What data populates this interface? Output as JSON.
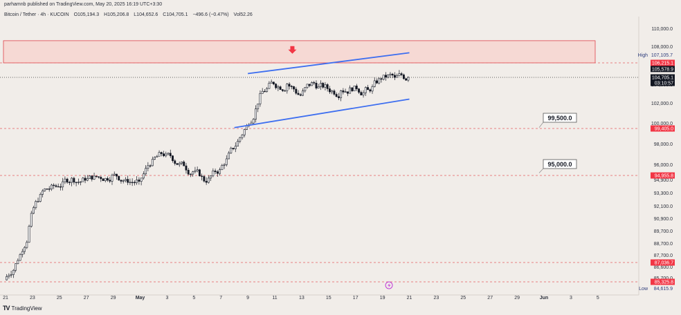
{
  "header": {
    "published_by": "parhamnb published on TradingView.com, May 20, 2025 16:19 UTC+3:30",
    "symbol": "Bitcoin / Tether · 4h · KUCOIN",
    "ohlc": {
      "open": "O105,194.3",
      "high": "H105,206.8",
      "low": "L104,652.6",
      "close": "C104,705.1",
      "change": "−496.6 (−0.47%)",
      "volume": "Vol52.26"
    }
  },
  "footer": {
    "brand": "TradingView",
    "logo": "tradingview-logo-icon"
  },
  "colors": {
    "background": "#f1ede9",
    "up_candle": "#ffffff",
    "down_candle": "#131722",
    "channel": "#3d6ef0",
    "zone_fill": "#f6d9d4",
    "zone_border": "#e0414a",
    "dashed_level": "#e25a5f",
    "red_badge": "#f23645",
    "dark_badge": "#131722",
    "gray_text": "#2a2e39",
    "arrow": "#f23645"
  },
  "chart_data": {
    "type": "candlestick",
    "symbol": "Bitcoin / Tether",
    "interval": "4h",
    "exchange": "KUCOIN",
    "x_axis": {
      "first_date": "2025-04-21",
      "last_date": "2025-06-05",
      "tick_labels": [
        "21",
        "23",
        "25",
        "27",
        "29",
        "May",
        "3",
        "5",
        "7",
        "9",
        "11",
        "13",
        "15",
        "17",
        "19",
        "21",
        "23",
        "25",
        "27",
        "29",
        "Jun",
        "3",
        "5"
      ]
    },
    "y_axis": {
      "ylim": [
        84300,
        111200
      ],
      "tick_labels": [
        "110,000.0",
        "108,000.0",
        "104,000.0",
        "102,000.0",
        "100,000.0",
        "98,000.0",
        "96,000.0",
        "94,900.0",
        "93,300.0",
        "92,100.0",
        "90,900.0",
        "89,700.0",
        "88,700.0",
        "87,700.0",
        "86,600.0",
        "85,700.0"
      ]
    },
    "daily_closes": [
      {
        "date": "2025-04-21",
        "close": 87300
      },
      {
        "date": "2025-04-22",
        "close": 91600
      },
      {
        "date": "2025-04-23",
        "close": 93700
      },
      {
        "date": "2025-04-24",
        "close": 93900
      },
      {
        "date": "2025-04-25",
        "close": 94700
      },
      {
        "date": "2025-04-26",
        "close": 94500
      },
      {
        "date": "2025-04-27",
        "close": 94800
      },
      {
        "date": "2025-04-28",
        "close": 95000
      },
      {
        "date": "2025-04-29",
        "close": 94600
      },
      {
        "date": "2025-04-30",
        "close": 94400
      },
      {
        "date": "2025-05-01",
        "close": 96500
      },
      {
        "date": "2025-05-02",
        "close": 97000
      },
      {
        "date": "2025-05-03",
        "close": 96100
      },
      {
        "date": "2025-05-04",
        "close": 95300
      },
      {
        "date": "2025-05-05",
        "close": 94300
      },
      {
        "date": "2025-05-06",
        "close": 95500
      },
      {
        "date": "2025-05-07",
        "close": 97500
      },
      {
        "date": "2025-05-08",
        "close": 99700
      },
      {
        "date": "2025-05-09",
        "close": 103000
      },
      {
        "date": "2025-05-10",
        "close": 104000
      },
      {
        "date": "2025-05-11",
        "close": 104000
      },
      {
        "date": "2025-05-12",
        "close": 102800
      },
      {
        "date": "2025-05-13",
        "close": 104100
      },
      {
        "date": "2025-05-14",
        "close": 103500
      },
      {
        "date": "2025-05-15",
        "close": 103300
      },
      {
        "date": "2025-05-16",
        "close": 103800
      },
      {
        "date": "2025-05-17",
        "close": 103400
      },
      {
        "date": "2025-05-18",
        "close": 104500
      },
      {
        "date": "2025-05-19",
        "close": 104700
      },
      {
        "date": "2025-05-20",
        "close": 104705
      }
    ],
    "resistance_zone": {
      "from": 106215.1,
      "to": 108600
    },
    "ascending_channel": {
      "upper": [
        {
          "date": "2025-05-09",
          "price": 105100
        },
        {
          "date": "2025-05-21",
          "price": 107300
        }
      ],
      "lower": [
        {
          "date": "2025-05-08",
          "price": 99500
        },
        {
          "date": "2025-05-21",
          "price": 102400
        }
      ]
    },
    "callouts": [
      {
        "label": "99,500.0",
        "price": 99500
      },
      {
        "label": "95,000.0",
        "price": 95000
      }
    ],
    "price_levels": [
      {
        "label": "High",
        "value": "107,105.7",
        "price": 107105.7,
        "style": "plain",
        "dashed": false
      },
      {
        "label": "",
        "value": "106,215.1",
        "price": 106215.1,
        "style": "red",
        "dashed": true
      },
      {
        "label": "",
        "value": "105,578.9",
        "price": 105578.9,
        "style": "dark",
        "dashed": false
      },
      {
        "label": "",
        "value": "104,705.1",
        "price": 104705.1,
        "style": "dark",
        "dashed": true,
        "sub": "03:10:57"
      },
      {
        "label": "",
        "value": "99,405.0",
        "price": 99405,
        "style": "red",
        "dashed": true
      },
      {
        "label": "",
        "value": "94,955.8",
        "price": 94955.8,
        "style": "red",
        "dashed": true
      },
      {
        "label": "",
        "value": "87,036.7",
        "price": 87036.7,
        "style": "red",
        "dashed": true
      },
      {
        "label": "",
        "value": "85,325.8",
        "price": 85325.8,
        "style": "red",
        "dashed": true
      },
      {
        "label": "Low",
        "value": "84,615.9",
        "price": 84615.9,
        "style": "plain",
        "dashed": false
      }
    ],
    "annotations": [
      {
        "type": "arrow-down",
        "date": "2025-05-12",
        "price": 107500,
        "icon": "down-arrow-icon"
      },
      {
        "type": "lightning-marker",
        "date": "2025-05-20",
        "icon": "lightning-icon"
      }
    ]
  }
}
